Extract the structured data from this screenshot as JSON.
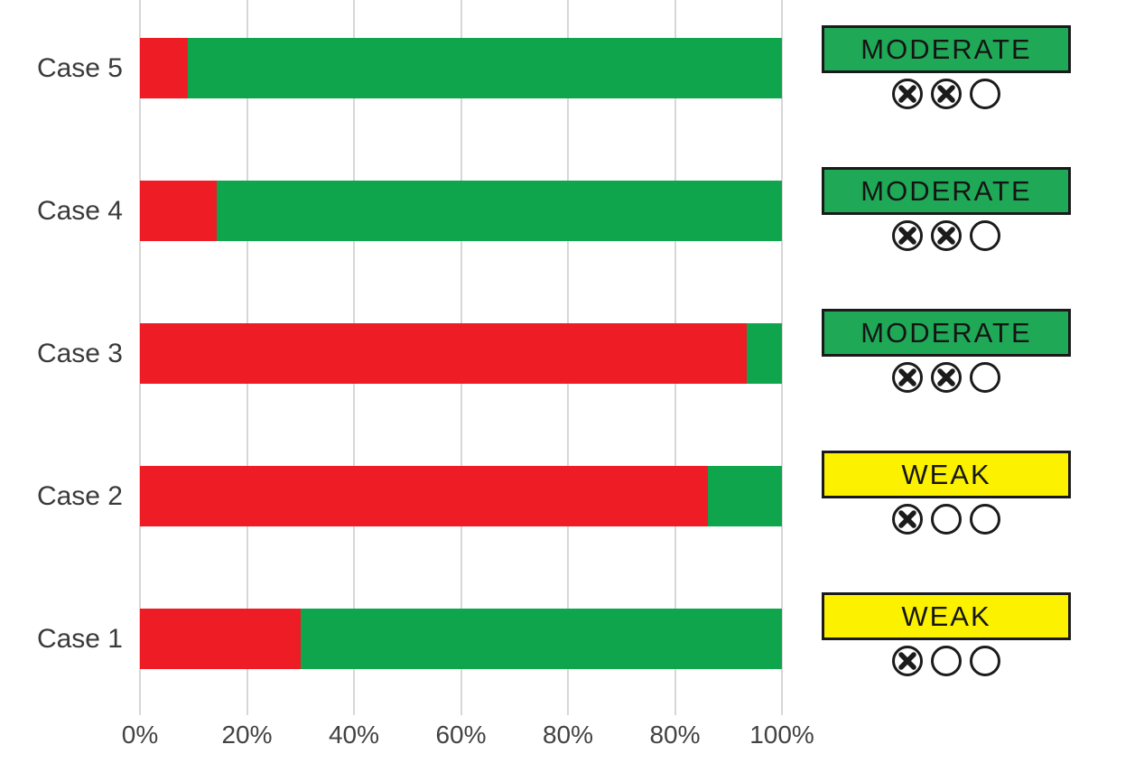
{
  "chart_data": {
    "type": "bar",
    "orientation": "horizontal",
    "stacked": true,
    "title": "",
    "xlabel": "",
    "ylabel": "",
    "categories": [
      "Case 5",
      "Case 4",
      "Case 3",
      "Case 2",
      "Case 1"
    ],
    "series": [
      {
        "name": "red-segment",
        "color": "#ee1c24",
        "values": [
          7.5,
          12,
          94.5,
          88.5,
          25
        ]
      },
      {
        "name": "green-segment",
        "color": "#0fa54d",
        "values": [
          92.5,
          88,
          5.5,
          11.5,
          75
        ]
      }
    ],
    "xlim": [
      0,
      100
    ],
    "x_tick_labels": [
      "0%",
      "20%",
      "40%",
      "60%",
      "80%",
      "80%",
      "100%"
    ],
    "grid": true,
    "legend_position": "none"
  },
  "ratings": [
    {
      "label": "MODERATE",
      "fill": "#1fa957",
      "marks": [
        "crossed",
        "crossed",
        "empty"
      ]
    },
    {
      "label": "MODERATE",
      "fill": "#1fa957",
      "marks": [
        "crossed",
        "crossed",
        "empty"
      ]
    },
    {
      "label": "MODERATE",
      "fill": "#1fa957",
      "marks": [
        "crossed",
        "crossed",
        "empty"
      ]
    },
    {
      "label": "WEAK",
      "fill": "#fcf200",
      "marks": [
        "crossed",
        "empty",
        "empty"
      ]
    },
    {
      "label": "WEAK",
      "fill": "#fcf200",
      "marks": [
        "crossed",
        "empty",
        "empty"
      ]
    }
  ],
  "colors": {
    "bar_red": "#ee1c24",
    "bar_green": "#0fa54d",
    "badge_border": "#1a1a1a",
    "badge_text": "#151515",
    "gridline": "#d7d7d7",
    "axis_text": "#424242",
    "category_text": "#3a3a3a",
    "mark_stroke": "#1b1b1b"
  }
}
